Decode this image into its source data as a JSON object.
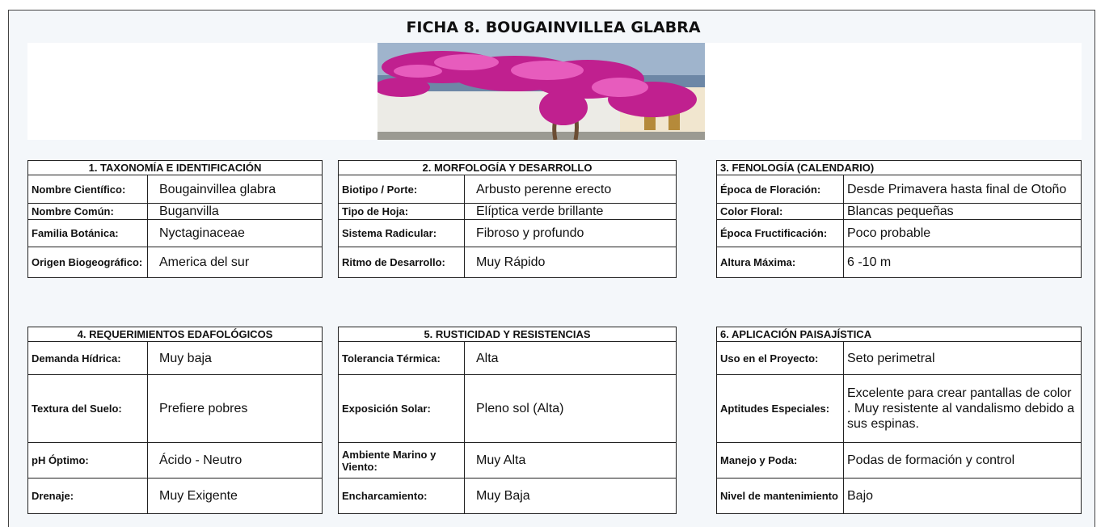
{
  "header": {
    "title": "FICHA 8. BOUGAINVILLEA GLABRA"
  },
  "sections": [
    {
      "title": "1. TAXONOMÍA E IDENTIFICACIÓN",
      "rows": [
        [
          "Nombre Científico:",
          "Bougainvillea glabra"
        ],
        [
          "Nombre Común:",
          "Buganvilla"
        ],
        [
          "Familia Botánica:",
          "Nyctaginaceae"
        ],
        [
          "Origen Biogeográfico:",
          "America del sur"
        ]
      ]
    },
    {
      "title": "2. MORFOLOGÍA Y DESARROLLO",
      "rows": [
        [
          "Biotipo / Porte:",
          "Arbusto perenne erecto"
        ],
        [
          "Tipo de Hoja:",
          "Elíptica verde brillante"
        ],
        [
          "Sistema Radicular:",
          "Fibroso y profundo"
        ],
        [
          "Ritmo de Desarrollo:",
          "Muy Rápido"
        ]
      ]
    },
    {
      "title": "3. FENOLOGÍA (CALENDARIO)",
      "rows": [
        [
          "Época de Floración:",
          "Desde Primavera hasta final de Otoño"
        ],
        [
          "Color Floral:",
          "Blancas pequeñas"
        ],
        [
          "Época Fructificación:",
          "Poco probable"
        ],
        [
          "Altura Máxima:",
          "6 -10 m"
        ]
      ]
    },
    {
      "title": "4. REQUERIMIENTOS EDAFOLÓGICOS",
      "rows": [
        [
          "Demanda Hídrica:",
          "Muy baja"
        ],
        [
          "Textura del Suelo:",
          "Prefiere pobres"
        ],
        [
          "pH Óptimo:",
          "Ácido - Neutro"
        ],
        [
          "Drenaje:",
          "Muy Exigente"
        ]
      ]
    },
    {
      "title": "5. RUSTICIDAD Y RESISTENCIAS",
      "rows": [
        [
          "Tolerancia Térmica:",
          "Alta"
        ],
        [
          "Exposición Solar:",
          "Pleno sol (Alta)"
        ],
        [
          "Ambiente Marino y Viento:",
          "Muy Alta"
        ],
        [
          "Encharcamiento:",
          "Muy Baja"
        ]
      ]
    },
    {
      "title": "6. APLICACIÓN PAISAJÍSTICA",
      "rows": [
        [
          "Uso en el Proyecto:",
          "Seto perimetral"
        ],
        [
          "Aptitudes Especiales:",
          "Excelente para crear pantallas de color . Muy resistente al vandalismo debido a sus espinas."
        ],
        [
          "Manejo y Poda:",
          "Podas de formación y control"
        ],
        [
          "Nivel de mantenimiento",
          "Bajo"
        ]
      ]
    }
  ]
}
